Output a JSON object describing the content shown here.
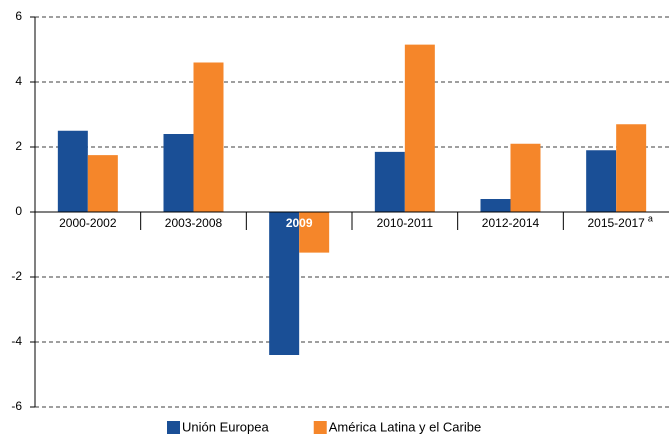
{
  "chart_data": {
    "type": "bar",
    "categories": [
      "2000-2002",
      "2003-2008",
      "2009",
      "2010-2011",
      "2012-2014",
      "2015-2017"
    ],
    "note_mark": "a",
    "series": [
      {
        "name": "Unión Europea",
        "color": "#1a4f96",
        "values": [
          2.5,
          2.4,
          -4.4,
          1.85,
          0.4,
          1.9
        ]
      },
      {
        "name": "América Latina y el Caribe",
        "color": "#f5862a",
        "values": [
          1.75,
          4.6,
          -1.25,
          5.15,
          2.1,
          2.7
        ]
      }
    ],
    "ylim": [
      -6,
      6
    ],
    "yticks": [
      -6,
      -4,
      -2,
      0,
      2,
      4,
      6
    ],
    "grid": true,
    "legend": "bottom"
  }
}
